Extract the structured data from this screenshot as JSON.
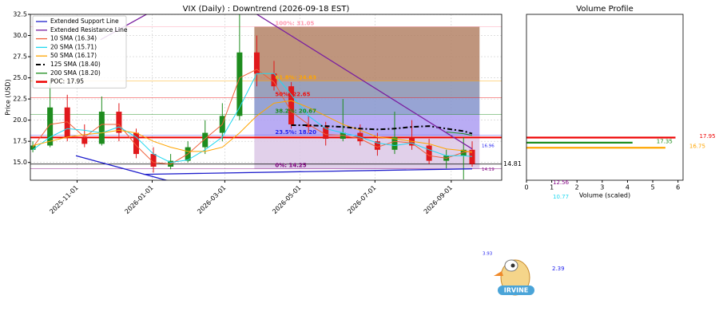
{
  "chart_data": [
    {
      "type": "candlestick",
      "title": "VIX (Daily) : Downtrend (2026-09-18 EST)",
      "y_label": "Price (USD)",
      "x": [
        "2025-09-26",
        "2025-10-10",
        "2025-10-24",
        "2025-11-07",
        "2025-11-21",
        "2025-12-05",
        "2025-12-19",
        "2026-01-02",
        "2026-01-16",
        "2026-01-30",
        "2026-02-13",
        "2026-02-27",
        "2026-03-13",
        "2026-03-27",
        "2026-04-10",
        "2026-04-24",
        "2026-05-08",
        "2026-05-22",
        "2026-06-05",
        "2026-06-19",
        "2026-07-03",
        "2026-07-17",
        "2026-07-31",
        "2026-08-14",
        "2026-08-28",
        "2026-09-11",
        "2026-09-18"
      ],
      "open": [
        16.5,
        17.0,
        21.5,
        18.0,
        17.2,
        21.0,
        18.5,
        16.0,
        14.5,
        15.2,
        16.8,
        18.5,
        20.5,
        28.0,
        25.5,
        24.0,
        19.5,
        19.2,
        17.8,
        18.5,
        17.5,
        16.5,
        18.0,
        17.0,
        15.2,
        15.8,
        16.5
      ],
      "high": [
        17.5,
        24.5,
        23.0,
        19.5,
        22.8,
        22.0,
        19.0,
        16.8,
        16.0,
        17.5,
        20.0,
        22.0,
        33.0,
        30.0,
        27.0,
        24.5,
        20.5,
        19.8,
        22.5,
        19.5,
        18.5,
        21.0,
        20.0,
        17.8,
        16.5,
        18.0,
        17.5
      ],
      "low": [
        16.2,
        16.8,
        17.5,
        16.8,
        17.0,
        17.5,
        15.5,
        13.8,
        14.2,
        15.0,
        16.0,
        17.5,
        20.0,
        24.0,
        23.5,
        19.0,
        18.5,
        17.0,
        17.5,
        17.0,
        15.8,
        16.0,
        16.5,
        14.8,
        14.3,
        13.0,
        14.5
      ],
      "close": [
        17.0,
        21.5,
        18.0,
        17.2,
        21.0,
        18.5,
        16.0,
        14.5,
        15.2,
        16.8,
        18.5,
        20.5,
        28.0,
        25.5,
        24.0,
        19.5,
        19.2,
        17.8,
        18.5,
        17.5,
        16.5,
        18.0,
        17.0,
        15.2,
        15.8,
        16.5,
        14.81
      ],
      "up_color": "#1e8c1e",
      "down_color": "#e0191c",
      "xlim": [
        "2025-09-24",
        "2026-10-12"
      ],
      "ylim": [
        12.9,
        32.5
      ],
      "xticks": [
        "2025-11-01",
        "2026-01-01",
        "2026-03-01",
        "2026-05-01",
        "2026-07-01",
        "2026-09-01"
      ],
      "yticks": [
        {
          "value": 15,
          "label": "15.0"
        },
        17.5,
        {
          "value": 20,
          "label": "20.0"
        },
        22.5,
        {
          "value": 25,
          "label": "25.0"
        },
        27.5,
        {
          "value": 30,
          "label": "30.0"
        },
        32.5
      ],
      "grid": true,
      "legend": "upper left",
      "trend_lines": [
        {
          "name": "Extended Support Line",
          "color": "#1f1fcc",
          "x": [
            "2025-10-31",
            "2026-01-25",
            "2026-01-25",
            "2025-12-25",
            "2026-09-18"
          ],
          "values": [
            15.8,
            12.4,
            null,
            13.6,
            14.25
          ]
        },
        {
          "name": "Extended Resistance Line",
          "color": "#7a1fa0",
          "x": [
            "2025-11-20",
            "2026-01-10",
            "2026-03-15",
            "2026-09-18"
          ],
          "values": [
            29.5,
            33.6,
            33.6,
            16.6
          ]
        }
      ],
      "series": [
        {
          "name": "10 SMA (16.34)",
          "color": "#f0603a",
          "dash": false,
          "values": [
            16.8,
            19.5,
            19.8,
            18.0,
            19.5,
            19.5,
            17.0,
            15.0,
            14.8,
            16.0,
            17.8,
            19.5,
            25.0,
            26.0,
            24.5,
            21.0,
            19.5,
            18.3,
            18.2,
            17.8,
            16.8,
            17.5,
            17.3,
            15.8,
            15.5,
            16.2,
            16.34
          ]
        },
        {
          "name": "20 SMA (15.71)",
          "color": "#1fd8f0",
          "dash": false,
          "values": [
            16.5,
            18.0,
            19.0,
            18.8,
            18.5,
            19.2,
            18.0,
            16.0,
            15.0,
            15.3,
            16.5,
            18.0,
            21.5,
            25.5,
            25.5,
            23.0,
            20.5,
            19.0,
            18.5,
            18.0,
            17.3,
            17.0,
            17.3,
            16.5,
            15.8,
            15.8,
            15.71
          ]
        },
        {
          "name": "50 SMA (16.17)",
          "color": "#ffa500",
          "dash": false,
          "values": [
            17.0,
            17.5,
            18.0,
            18.3,
            18.5,
            18.8,
            18.5,
            17.5,
            16.8,
            16.3,
            16.3,
            16.8,
            18.5,
            20.5,
            22.0,
            22.3,
            21.5,
            20.5,
            19.5,
            18.8,
            18.0,
            17.8,
            17.5,
            17.2,
            16.6,
            16.4,
            16.17
          ]
        },
        {
          "name": "125 SMA (18.40)",
          "color": "#000000",
          "dash": true,
          "values": [
            null,
            null,
            null,
            null,
            null,
            null,
            null,
            null,
            null,
            null,
            null,
            null,
            null,
            null,
            null,
            19.4,
            19.4,
            19.3,
            19.2,
            19.0,
            18.9,
            19.0,
            19.2,
            19.3,
            19.0,
            18.7,
            18.4
          ]
        },
        {
          "name": "200 SMA (18.20)",
          "color": "#1a8c1a",
          "dash": false,
          "values": [
            null,
            null,
            null,
            null,
            null,
            null,
            null,
            null,
            null,
            null,
            null,
            null,
            null,
            null,
            null,
            null,
            null,
            null,
            null,
            null,
            null,
            null,
            null,
            null,
            18.6,
            18.4,
            18.2
          ]
        }
      ],
      "poc": {
        "name": "POC: 17.95",
        "value": 17.95,
        "color": "#ee0000"
      },
      "fib": {
        "x": [
          "2026-03-25",
          "2026-09-24"
        ],
        "levels": [
          {
            "label": "0%: 14.25",
            "value": 14.25,
            "color": "#800080"
          },
          {
            "label": "23.5%: 18.20",
            "value": 18.2,
            "color": "#1f1fee"
          },
          {
            "label": "38.2%: 20.67",
            "value": 20.67,
            "color": "#1a8c1a"
          },
          {
            "label": "50%: 22.65",
            "value": 22.65,
            "color": "#ee1111"
          },
          {
            "label": "61.8%: 24.63",
            "value": 24.63,
            "color": "#ffa500"
          },
          {
            "label": "100%: 31.05",
            "value": 31.05,
            "color": "#ff9ab0"
          }
        ],
        "fills": [
          "#dcc8e6",
          "#ad9df2",
          "#8594cc",
          "#8a90b0",
          "#b48266"
        ]
      },
      "current_price": 14.81,
      "price_labels": [
        {
          "value": 16.96,
          "color": "#1f1fee"
        },
        {
          "value": 14.19,
          "color": "#800080"
        }
      ]
    },
    {
      "type": "hbar",
      "title": "Volume Profile",
      "x_label": "Volume (scaled)",
      "levels": [
        17.95,
        17.35,
        16.75
      ],
      "values": [
        5.9,
        4.2,
        5.5
      ],
      "colors": [
        "#ee0000",
        "#1a8c1a",
        "#ffa500"
      ],
      "xlim": [
        0,
        6.2
      ],
      "xticks": [
        0,
        1,
        2,
        3,
        4,
        5,
        6
      ],
      "ylim": [
        12.9,
        32.5
      ]
    }
  ],
  "annotations": [
    {
      "value": 12.56,
      "color": "#800080"
    },
    {
      "value": 10.77,
      "color": "#1fd8f0"
    },
    {
      "value": 3.93,
      "color": "#1f1fee"
    },
    {
      "value": 2.39,
      "color": "#1f1fee"
    }
  ],
  "logo": {
    "text": "IRVINE"
  }
}
